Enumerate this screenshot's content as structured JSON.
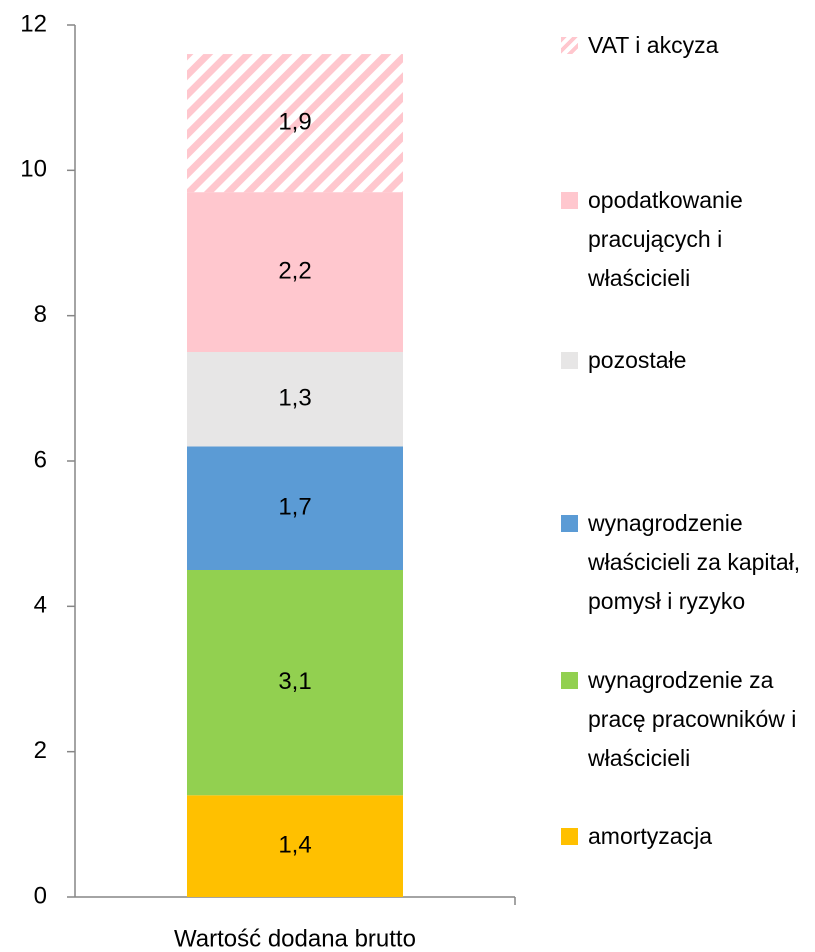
{
  "chart_data": {
    "type": "stacked_bar",
    "categories": [
      "Wartość dodana brutto"
    ],
    "series": [
      {
        "name": "amortyzacja",
        "color": "#FFC000",
        "values": [
          1.4
        ],
        "value_labels": [
          "1,4"
        ]
      },
      {
        "name": "wynagrodzenie za pracę pracowników i właścicieli",
        "color": "#92D050",
        "values": [
          3.1
        ],
        "value_labels": [
          "3,1"
        ]
      },
      {
        "name": "wynagrodzenie właścicieli za kapitał, pomysł i ryzyko",
        "color": "#5B9BD5",
        "values": [
          1.7
        ],
        "value_labels": [
          "1,7"
        ]
      },
      {
        "name": "pozostałe",
        "color": "#E7E6E6",
        "values": [
          1.3
        ],
        "value_labels": [
          "1,3"
        ]
      },
      {
        "name": "opodatkowanie pracujących i właścicieli",
        "color": "#FFC7CE",
        "values": [
          2.2
        ],
        "value_labels": [
          "2,2"
        ]
      },
      {
        "name": "VAT i akcyza",
        "color": "#FFC7CE",
        "hatch": true,
        "values": [
          1.9
        ],
        "value_labels": [
          "1,9"
        ]
      }
    ],
    "ylim": [
      0,
      12
    ],
    "yticks": [
      0,
      2,
      4,
      6,
      8,
      10,
      12
    ],
    "legend": "right"
  }
}
